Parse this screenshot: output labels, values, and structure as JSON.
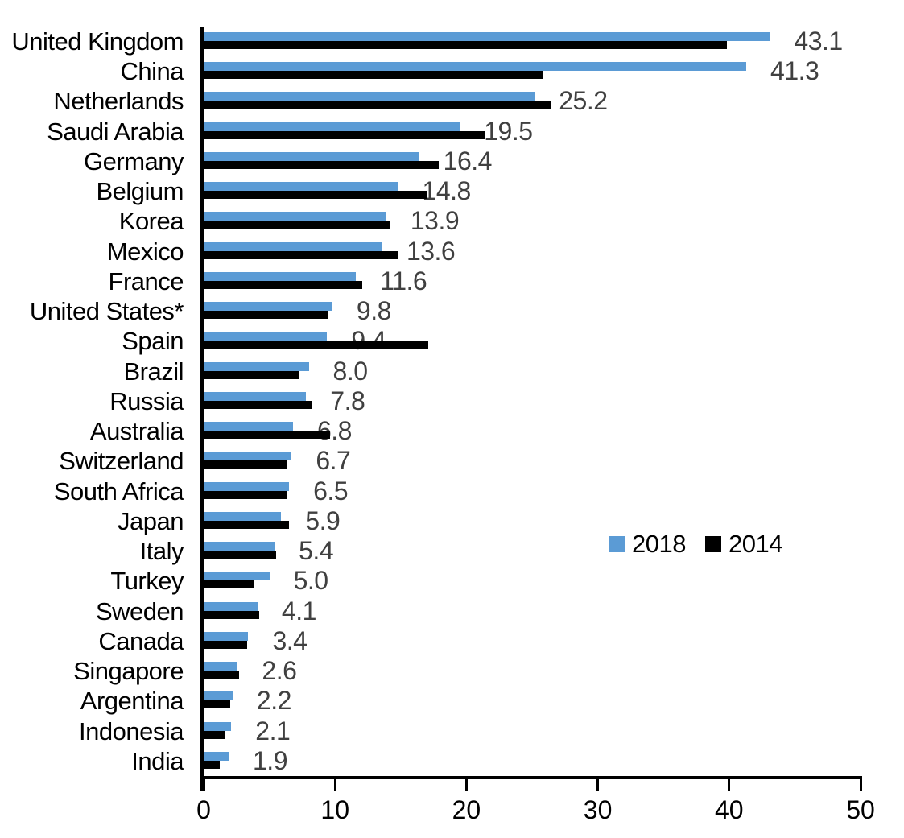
{
  "chart_data": {
    "type": "bar",
    "orientation": "horizontal",
    "title": "",
    "xlabel": "",
    "ylabel": "",
    "xlim": [
      0,
      50
    ],
    "x_ticks": [
      "0",
      "10",
      "20",
      "30",
      "40",
      "50"
    ],
    "grid": false,
    "legend_position": "middle-right",
    "categories": [
      "United Kingdom",
      "China",
      "Netherlands",
      "Saudi Arabia",
      "Germany",
      "Belgium",
      "Korea",
      "Mexico",
      "France",
      "United States*",
      "Spain",
      "Brazil",
      "Russia",
      "Australia",
      "Switzerland",
      "South Africa",
      "Japan",
      "Italy",
      "Turkey",
      "Sweden",
      "Canada",
      "Singapore",
      "Argentina",
      "Indonesia",
      "India"
    ],
    "series": [
      {
        "name": "2018",
        "color": "#5B9BD5",
        "values": [
          43.1,
          41.3,
          25.2,
          19.5,
          16.4,
          14.8,
          13.9,
          13.6,
          11.6,
          9.8,
          9.4,
          8.0,
          7.8,
          6.8,
          6.7,
          6.5,
          5.9,
          5.4,
          5.0,
          4.1,
          3.4,
          2.6,
          2.2,
          2.1,
          1.9
        ],
        "data_labels": [
          "43.1",
          "41.3",
          "25.2",
          "19.5",
          "16.4",
          "14.8",
          "13.9",
          "13.6",
          "11.6",
          "9.8",
          "9.4",
          "8.0",
          "7.8",
          "6.8",
          "6.7",
          "6.5",
          "5.9",
          "5.4",
          "5.0",
          "4.1",
          "3.4",
          "2.6",
          "2.2",
          "2.1",
          "1.9"
        ]
      },
      {
        "name": "2014",
        "color": "#000000",
        "values": [
          39.8,
          25.8,
          26.4,
          21.4,
          17.9,
          17.0,
          14.2,
          14.8,
          12.1,
          9.5,
          17.1,
          7.3,
          8.3,
          9.6,
          6.4,
          6.3,
          6.5,
          5.5,
          3.8,
          4.2,
          3.3,
          2.7,
          2.0,
          1.6,
          1.2
        ],
        "values_estimated_from_pixels": true
      }
    ],
    "value_label_color": "#404040"
  }
}
